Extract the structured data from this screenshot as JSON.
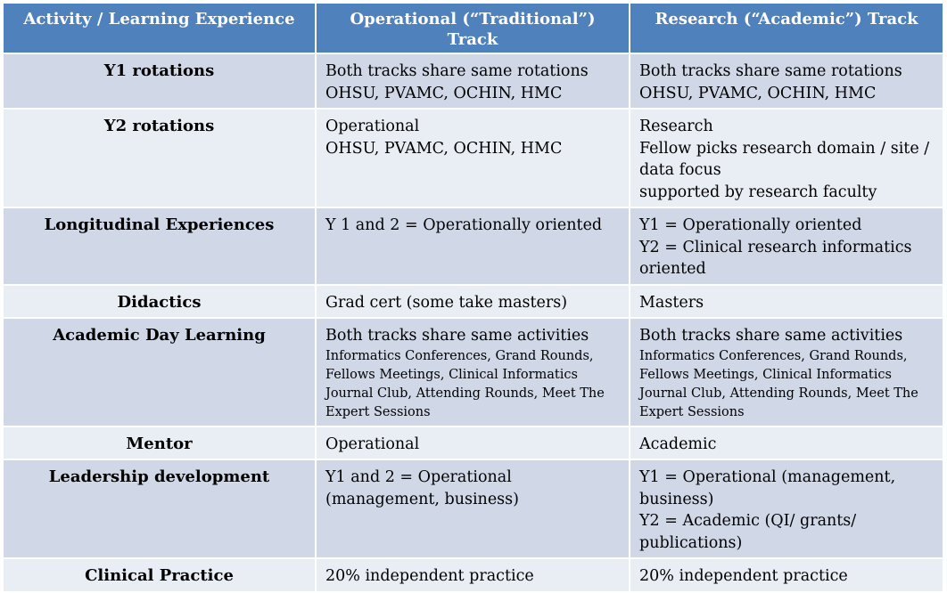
{
  "header": {
    "col1": "Activity / Learning Experience",
    "col2": "Operational (“Traditional”) Track",
    "col3": "Research (“Academic”) Track"
  },
  "rows": [
    {
      "activity": "Y1 rotations",
      "operational": [
        "Both tracks share same rotations",
        "OHSU, PVAMC, OCHIN, HMC"
      ],
      "research": [
        "Both tracks share same rotations",
        "OHSU, PVAMC, OCHIN, HMC"
      ]
    },
    {
      "activity": "Y2 rotations",
      "operational": [
        "Operational",
        "OHSU, PVAMC, OCHIN, HMC"
      ],
      "research": [
        "Research",
        "Fellow picks research domain / site / data focus",
        "supported by research faculty"
      ]
    },
    {
      "activity": "Longitudinal Experiences",
      "operational": [
        "Y 1 and 2 = Operationally oriented"
      ],
      "research": [
        "Y1 = Operationally oriented",
        "Y2 = Clinical research informatics oriented"
      ]
    },
    {
      "activity": "Didactics",
      "operational": [
        "Grad cert (some take masters)"
      ],
      "research": [
        "Masters"
      ]
    },
    {
      "activity": "Academic Day Learning",
      "operational": [
        "Both tracks share same activities"
      ],
      "operational_detail": "Informatics Conferences, Grand Rounds, Fellows Meetings, Clinical Informatics Journal Club, Attending Rounds, Meet The Expert Sessions",
      "research": [
        "Both tracks share same activities"
      ],
      "research_detail": "Informatics Conferences, Grand Rounds, Fellows Meetings, Clinical Informatics Journal Club, Attending Rounds, Meet The Expert Sessions"
    },
    {
      "activity": "Mentor",
      "operational": [
        "Operational"
      ],
      "research": [
        "Academic"
      ]
    },
    {
      "activity": "Leadership development",
      "operational": [
        "Y1 and 2 = Operational (management, business)"
      ],
      "research": [
        "Y1 = Operational (management, business)",
        "Y2 = Academic (QI/ grants/ publications)"
      ]
    },
    {
      "activity": "Clinical Practice",
      "operational": [
        "20% independent practice"
      ],
      "research": [
        "20% independent practice"
      ]
    }
  ],
  "colors": {
    "header_bg": "#4f81bd",
    "row_odd_bg": "#d0d8e8",
    "row_even_bg": "#e9edf4",
    "border": "#ffffff"
  }
}
